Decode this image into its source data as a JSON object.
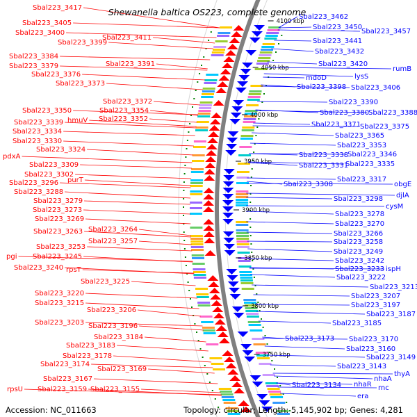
{
  "title": "Shewanella baltica OS223, complete genome",
  "footer": {
    "accession": "Accession: NC_011663",
    "summary": "Topology: circular; Length: 5,145,902 bp; Genes: 4,281"
  },
  "colors": {
    "forward_strand": "#ff0000",
    "reverse_strand": "#0000ff",
    "backbone": "#808080",
    "feature_dot": "#008000"
  },
  "ticks": [
    "4100 kbp",
    "4050 kbp",
    "4000 kbp",
    "3950 kbp",
    "3900 kbp",
    "3850 kbp",
    "3800 kbp",
    "3750 kbp"
  ],
  "left_labels": [
    "Sbal223_3417",
    "Sbal223_3405",
    "Sbal223_3400",
    "Sbal223_3411",
    "Sbal223_3399",
    "Sbal223_3384",
    "Sbal223_3379",
    "Sbal223_3391",
    "Sbal223_3376",
    "Sbal223_3373",
    "Sbal223_3372",
    "Sbal223_3350",
    "Sbal223_3354",
    "Sbal223_3339",
    "hmuV",
    "Sbal223_3352",
    "Sbal223_3334",
    "Sbal223_3330",
    "Sbal223_3324",
    "pdxA",
    "Sbal223_3309",
    "Sbal223_3302",
    "Sbal223_3296",
    "purT",
    "Sbal223_3288",
    "Sbal223_3279",
    "Sbal223_3273",
    "Sbal223_3269",
    "Sbal223_3263",
    "Sbal223_3264",
    "Sbal223_3257",
    "Sbal223_3253",
    "pgi",
    "Sbal223_3245",
    "Sbal223_3240",
    "rpsT",
    "Sbal223_3225",
    "Sbal223_3220",
    "Sbal223_3215",
    "Sbal223_3206",
    "Sbal223_3203",
    "Sbal223_3196",
    "Sbal223_3184",
    "Sbal223_3183",
    "Sbal223_3178",
    "Sbal223_3174",
    "Sbal223_3169",
    "Sbal223_3167",
    "rpsU",
    "Sbal223_3159",
    "Sbal223_3155"
  ],
  "right_labels": [
    "Sbal223_3462",
    "Sbal223_3450",
    "Sbal223_3457",
    "Sbal223_3441",
    "Sbal223_3432",
    "Sbal223_3420",
    "rumB",
    "mdoD",
    "lysS",
    "Sbal223_3398",
    "Sbal223_3406",
    "Sbal223_3390",
    "Sbal223_3380",
    "Sbal223_3388",
    "Sbal223_3371",
    "Sbal223_3375",
    "Sbal223_3365",
    "Sbal223_3353",
    "Sbal223_3338",
    "Sbal223_3346",
    "Sbal223_3331",
    "Sbal223_3335",
    "Sbal223_3317",
    "obgE",
    "Sbal223_3308",
    "djlA",
    "Sbal223_3298",
    "cysM",
    "Sbal223_3278",
    "Sbal223_3270",
    "Sbal223_3266",
    "Sbal223_3258",
    "Sbal223_3249",
    "Sbal223_3242",
    "Sbal223_3233",
    "ispH",
    "Sbal223_3222",
    "Sbal223_3213",
    "Sbal223_3207",
    "Sbal223_3197",
    "Sbal223_3187",
    "Sbal223_3185",
    "Sbal223_3173",
    "Sbal223_3170",
    "Sbal223_3160",
    "Sbal223_3149",
    "Sbal223_3143",
    "thyA",
    "nhaA",
    "Sbal223_3134",
    "nhaR",
    "rnc",
    "era"
  ]
}
